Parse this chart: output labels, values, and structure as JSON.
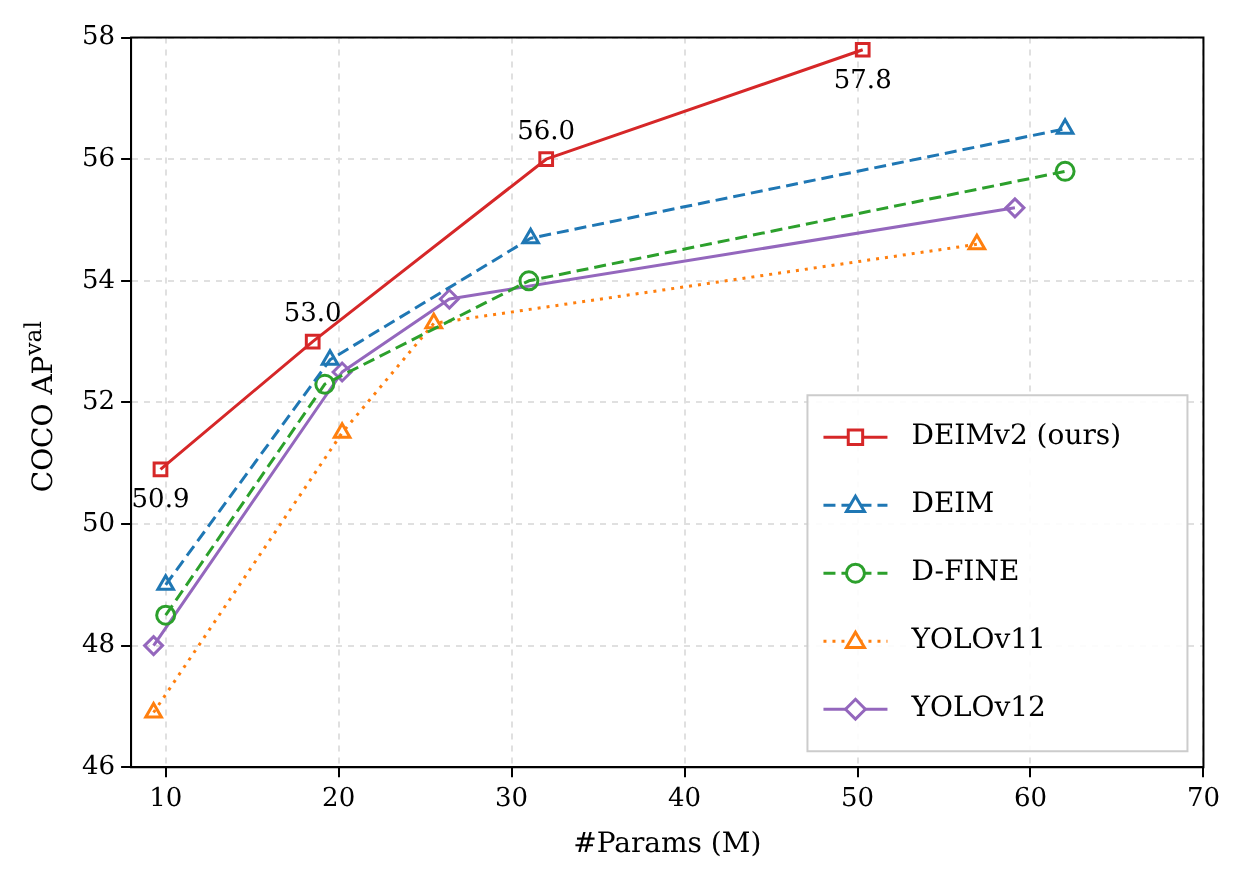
{
  "chart_data": {
    "type": "line",
    "xlabel": "#Params (M)",
    "ylabel": "COCO AP$^{val}$",
    "xlim": [
      8,
      70
    ],
    "xticks": [
      10,
      20,
      30,
      40,
      50,
      60,
      70
    ],
    "ylim": [
      46,
      58
    ],
    "yticks": [
      46,
      48,
      50,
      52,
      54,
      56,
      58
    ],
    "grid": true,
    "legend": "bottom right",
    "series": [
      {
        "name": "DEIMv2 (ours)",
        "color": "#d62728",
        "marker": "square",
        "line_style": "solid",
        "x": [
          9.7,
          18.5,
          32,
          50.3
        ],
        "values": [
          50.9,
          53.0,
          56.0,
          57.8
        ],
        "value_labels": [
          "50.9",
          "53.0",
          "56.0",
          "57.8"
        ]
      },
      {
        "name": "DEIM",
        "color": "#1f77b4",
        "marker": "triangle",
        "line_style": "dashed",
        "x": [
          10,
          19.5,
          31.1,
          62
        ],
        "values": [
          49.0,
          52.7,
          54.7,
          56.5
        ]
      },
      {
        "name": "D-FINE",
        "color": "#2ca02c",
        "marker": "circle",
        "line_style": "dashed",
        "x": [
          10,
          19.2,
          31,
          62
        ],
        "values": [
          48.5,
          52.3,
          54.0,
          55.8
        ]
      },
      {
        "name": "YOLOv11",
        "color": "#ff7f0e",
        "marker": "triangle",
        "line_style": "dotted",
        "x": [
          9.3,
          20.2,
          25.5,
          56.9
        ],
        "values": [
          46.9,
          51.5,
          53.3,
          54.6
        ]
      },
      {
        "name": "YOLOv12",
        "color": "#9467bd",
        "marker": "diamond",
        "line_style": "solid",
        "x": [
          9.3,
          20.2,
          26.4,
          59.1
        ],
        "values": [
          48.0,
          52.5,
          53.7,
          55.2
        ]
      }
    ]
  }
}
